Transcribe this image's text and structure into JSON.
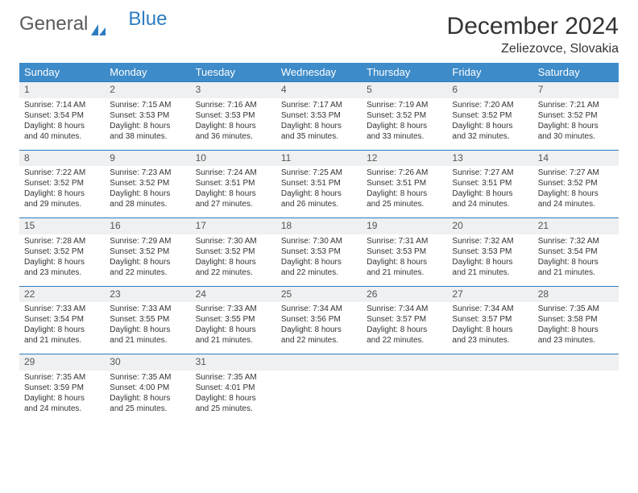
{
  "logo": {
    "general": "General",
    "blue": "Blue"
  },
  "title": {
    "month": "December 2024",
    "location": "Zeliezovce, Slovakia"
  },
  "colors": {
    "header_bg": "#3d8bc9",
    "header_text": "#ffffff",
    "daynum_bg": "#eef0f1",
    "border": "#2d7cc1",
    "text": "#333333"
  },
  "weekdays": [
    "Sunday",
    "Monday",
    "Tuesday",
    "Wednesday",
    "Thursday",
    "Friday",
    "Saturday"
  ],
  "weeks": [
    [
      {
        "day": "1",
        "sunrise": "Sunrise: 7:14 AM",
        "sunset": "Sunset: 3:54 PM",
        "daylight": "Daylight: 8 hours and 40 minutes."
      },
      {
        "day": "2",
        "sunrise": "Sunrise: 7:15 AM",
        "sunset": "Sunset: 3:53 PM",
        "daylight": "Daylight: 8 hours and 38 minutes."
      },
      {
        "day": "3",
        "sunrise": "Sunrise: 7:16 AM",
        "sunset": "Sunset: 3:53 PM",
        "daylight": "Daylight: 8 hours and 36 minutes."
      },
      {
        "day": "4",
        "sunrise": "Sunrise: 7:17 AM",
        "sunset": "Sunset: 3:53 PM",
        "daylight": "Daylight: 8 hours and 35 minutes."
      },
      {
        "day": "5",
        "sunrise": "Sunrise: 7:19 AM",
        "sunset": "Sunset: 3:52 PM",
        "daylight": "Daylight: 8 hours and 33 minutes."
      },
      {
        "day": "6",
        "sunrise": "Sunrise: 7:20 AM",
        "sunset": "Sunset: 3:52 PM",
        "daylight": "Daylight: 8 hours and 32 minutes."
      },
      {
        "day": "7",
        "sunrise": "Sunrise: 7:21 AM",
        "sunset": "Sunset: 3:52 PM",
        "daylight": "Daylight: 8 hours and 30 minutes."
      }
    ],
    [
      {
        "day": "8",
        "sunrise": "Sunrise: 7:22 AM",
        "sunset": "Sunset: 3:52 PM",
        "daylight": "Daylight: 8 hours and 29 minutes."
      },
      {
        "day": "9",
        "sunrise": "Sunrise: 7:23 AM",
        "sunset": "Sunset: 3:52 PM",
        "daylight": "Daylight: 8 hours and 28 minutes."
      },
      {
        "day": "10",
        "sunrise": "Sunrise: 7:24 AM",
        "sunset": "Sunset: 3:51 PM",
        "daylight": "Daylight: 8 hours and 27 minutes."
      },
      {
        "day": "11",
        "sunrise": "Sunrise: 7:25 AM",
        "sunset": "Sunset: 3:51 PM",
        "daylight": "Daylight: 8 hours and 26 minutes."
      },
      {
        "day": "12",
        "sunrise": "Sunrise: 7:26 AM",
        "sunset": "Sunset: 3:51 PM",
        "daylight": "Daylight: 8 hours and 25 minutes."
      },
      {
        "day": "13",
        "sunrise": "Sunrise: 7:27 AM",
        "sunset": "Sunset: 3:51 PM",
        "daylight": "Daylight: 8 hours and 24 minutes."
      },
      {
        "day": "14",
        "sunrise": "Sunrise: 7:27 AM",
        "sunset": "Sunset: 3:52 PM",
        "daylight": "Daylight: 8 hours and 24 minutes."
      }
    ],
    [
      {
        "day": "15",
        "sunrise": "Sunrise: 7:28 AM",
        "sunset": "Sunset: 3:52 PM",
        "daylight": "Daylight: 8 hours and 23 minutes."
      },
      {
        "day": "16",
        "sunrise": "Sunrise: 7:29 AM",
        "sunset": "Sunset: 3:52 PM",
        "daylight": "Daylight: 8 hours and 22 minutes."
      },
      {
        "day": "17",
        "sunrise": "Sunrise: 7:30 AM",
        "sunset": "Sunset: 3:52 PM",
        "daylight": "Daylight: 8 hours and 22 minutes."
      },
      {
        "day": "18",
        "sunrise": "Sunrise: 7:30 AM",
        "sunset": "Sunset: 3:53 PM",
        "daylight": "Daylight: 8 hours and 22 minutes."
      },
      {
        "day": "19",
        "sunrise": "Sunrise: 7:31 AM",
        "sunset": "Sunset: 3:53 PM",
        "daylight": "Daylight: 8 hours and 21 minutes."
      },
      {
        "day": "20",
        "sunrise": "Sunrise: 7:32 AM",
        "sunset": "Sunset: 3:53 PM",
        "daylight": "Daylight: 8 hours and 21 minutes."
      },
      {
        "day": "21",
        "sunrise": "Sunrise: 7:32 AM",
        "sunset": "Sunset: 3:54 PM",
        "daylight": "Daylight: 8 hours and 21 minutes."
      }
    ],
    [
      {
        "day": "22",
        "sunrise": "Sunrise: 7:33 AM",
        "sunset": "Sunset: 3:54 PM",
        "daylight": "Daylight: 8 hours and 21 minutes."
      },
      {
        "day": "23",
        "sunrise": "Sunrise: 7:33 AM",
        "sunset": "Sunset: 3:55 PM",
        "daylight": "Daylight: 8 hours and 21 minutes."
      },
      {
        "day": "24",
        "sunrise": "Sunrise: 7:33 AM",
        "sunset": "Sunset: 3:55 PM",
        "daylight": "Daylight: 8 hours and 21 minutes."
      },
      {
        "day": "25",
        "sunrise": "Sunrise: 7:34 AM",
        "sunset": "Sunset: 3:56 PM",
        "daylight": "Daylight: 8 hours and 22 minutes."
      },
      {
        "day": "26",
        "sunrise": "Sunrise: 7:34 AM",
        "sunset": "Sunset: 3:57 PM",
        "daylight": "Daylight: 8 hours and 22 minutes."
      },
      {
        "day": "27",
        "sunrise": "Sunrise: 7:34 AM",
        "sunset": "Sunset: 3:57 PM",
        "daylight": "Daylight: 8 hours and 23 minutes."
      },
      {
        "day": "28",
        "sunrise": "Sunrise: 7:35 AM",
        "sunset": "Sunset: 3:58 PM",
        "daylight": "Daylight: 8 hours and 23 minutes."
      }
    ],
    [
      {
        "day": "29",
        "sunrise": "Sunrise: 7:35 AM",
        "sunset": "Sunset: 3:59 PM",
        "daylight": "Daylight: 8 hours and 24 minutes."
      },
      {
        "day": "30",
        "sunrise": "Sunrise: 7:35 AM",
        "sunset": "Sunset: 4:00 PM",
        "daylight": "Daylight: 8 hours and 25 minutes."
      },
      {
        "day": "31",
        "sunrise": "Sunrise: 7:35 AM",
        "sunset": "Sunset: 4:01 PM",
        "daylight": "Daylight: 8 hours and 25 minutes."
      },
      null,
      null,
      null,
      null
    ]
  ]
}
